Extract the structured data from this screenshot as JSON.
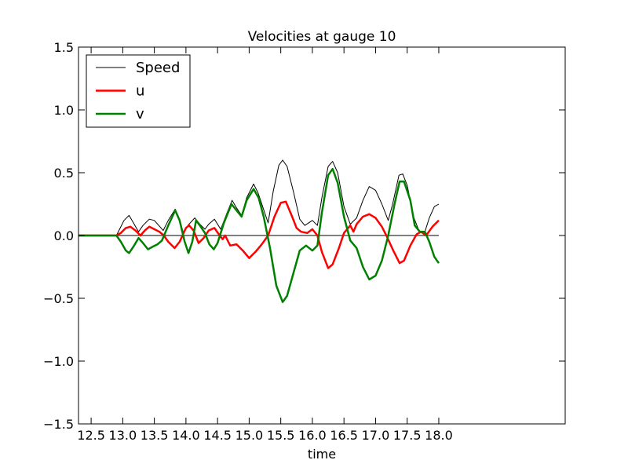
{
  "chart_data": {
    "type": "line",
    "title": "Velocities at gauge 10",
    "xlabel": "time",
    "ylabel": "",
    "xlim": [
      12.3,
      20.0
    ],
    "ylim": [
      -1.5,
      1.5
    ],
    "x_ticks": [
      12.5,
      13.0,
      13.5,
      14.0,
      14.5,
      15.0,
      15.5,
      16.0,
      16.5,
      17.0,
      17.5,
      18.0
    ],
    "x_tick_labels": [
      "12.5",
      "13.0",
      "13.5",
      "14.0",
      "14.5",
      "15.0",
      "15.5",
      "16.0",
      "16.5",
      "17.0",
      "17.5",
      "18.0"
    ],
    "y_ticks": [
      -1.5,
      -1.0,
      -0.5,
      0.0,
      0.5,
      1.0,
      1.5
    ],
    "y_tick_labels": [
      "−1.5",
      "−1.0",
      "−0.5",
      "0.0",
      "0.5",
      "1.0",
      "1.5"
    ],
    "grid": false,
    "legend_position": "top-left",
    "zero_line": {
      "x_start": 12.3,
      "x_end": 18.0,
      "y": 0,
      "color": "#000000"
    },
    "series": [
      {
        "name": "Speed",
        "color": "#000000",
        "width": 1,
        "points": [
          [
            12.3,
            0.0
          ],
          [
            12.9,
            0.0
          ],
          [
            12.95,
            0.05
          ],
          [
            13.02,
            0.12
          ],
          [
            13.1,
            0.16
          ],
          [
            13.17,
            0.1
          ],
          [
            13.25,
            0.03
          ],
          [
            13.32,
            0.08
          ],
          [
            13.42,
            0.13
          ],
          [
            13.5,
            0.12
          ],
          [
            13.57,
            0.08
          ],
          [
            13.64,
            0.04
          ],
          [
            13.72,
            0.12
          ],
          [
            13.83,
            0.21
          ],
          [
            13.9,
            0.12
          ],
          [
            13.96,
            0.02
          ],
          [
            14.03,
            0.08
          ],
          [
            14.14,
            0.14
          ],
          [
            14.22,
            0.09
          ],
          [
            14.3,
            0.05
          ],
          [
            14.36,
            0.09
          ],
          [
            14.45,
            0.13
          ],
          [
            14.55,
            0.05
          ],
          [
            14.65,
            0.18
          ],
          [
            14.73,
            0.28
          ],
          [
            14.8,
            0.22
          ],
          [
            14.88,
            0.16
          ],
          [
            14.96,
            0.3
          ],
          [
            15.07,
            0.41
          ],
          [
            15.14,
            0.34
          ],
          [
            15.22,
            0.22
          ],
          [
            15.3,
            0.1
          ],
          [
            15.38,
            0.35
          ],
          [
            15.47,
            0.56
          ],
          [
            15.53,
            0.6
          ],
          [
            15.6,
            0.55
          ],
          [
            15.7,
            0.35
          ],
          [
            15.8,
            0.13
          ],
          [
            15.88,
            0.08
          ],
          [
            16.0,
            0.12
          ],
          [
            16.08,
            0.08
          ],
          [
            16.15,
            0.3
          ],
          [
            16.25,
            0.55
          ],
          [
            16.32,
            0.59
          ],
          [
            16.4,
            0.5
          ],
          [
            16.5,
            0.23
          ],
          [
            16.6,
            0.09
          ],
          [
            16.7,
            0.14
          ],
          [
            16.8,
            0.28
          ],
          [
            16.9,
            0.39
          ],
          [
            17.0,
            0.36
          ],
          [
            17.1,
            0.25
          ],
          [
            17.2,
            0.12
          ],
          [
            17.27,
            0.25
          ],
          [
            17.37,
            0.48
          ],
          [
            17.43,
            0.49
          ],
          [
            17.5,
            0.4
          ],
          [
            17.6,
            0.15
          ],
          [
            17.7,
            0.02
          ],
          [
            17.78,
            0.03
          ],
          [
            17.85,
            0.14
          ],
          [
            17.93,
            0.23
          ],
          [
            18.0,
            0.25
          ]
        ]
      },
      {
        "name": "u",
        "color": "#ff0000",
        "width": 2.5,
        "points": [
          [
            12.3,
            0.0
          ],
          [
            12.9,
            0.0
          ],
          [
            12.97,
            0.02
          ],
          [
            13.05,
            0.06
          ],
          [
            13.12,
            0.07
          ],
          [
            13.2,
            0.04
          ],
          [
            13.28,
            0.0
          ],
          [
            13.35,
            0.04
          ],
          [
            13.42,
            0.07
          ],
          [
            13.5,
            0.05
          ],
          [
            13.58,
            0.03
          ],
          [
            13.65,
            0.0
          ],
          [
            13.72,
            -0.05
          ],
          [
            13.82,
            -0.1
          ],
          [
            13.9,
            -0.05
          ],
          [
            14.0,
            0.06
          ],
          [
            14.05,
            0.08
          ],
          [
            14.12,
            0.04
          ],
          [
            14.2,
            -0.06
          ],
          [
            14.28,
            -0.02
          ],
          [
            14.36,
            0.04
          ],
          [
            14.45,
            0.06
          ],
          [
            14.52,
            0.01
          ],
          [
            14.58,
            -0.03
          ],
          [
            14.62,
            0.0
          ],
          [
            14.7,
            -0.08
          ],
          [
            14.8,
            -0.07
          ],
          [
            14.9,
            -0.12
          ],
          [
            15.0,
            -0.18
          ],
          [
            15.1,
            -0.13
          ],
          [
            15.2,
            -0.07
          ],
          [
            15.3,
            0.0
          ],
          [
            15.4,
            0.15
          ],
          [
            15.5,
            0.26
          ],
          [
            15.58,
            0.27
          ],
          [
            15.68,
            0.15
          ],
          [
            15.75,
            0.06
          ],
          [
            15.82,
            0.03
          ],
          [
            15.92,
            0.02
          ],
          [
            16.0,
            0.05
          ],
          [
            16.08,
            0.0
          ],
          [
            16.15,
            -0.13
          ],
          [
            16.25,
            -0.26
          ],
          [
            16.32,
            -0.23
          ],
          [
            16.42,
            -0.1
          ],
          [
            16.5,
            0.02
          ],
          [
            16.6,
            0.08
          ],
          [
            16.65,
            0.03
          ],
          [
            16.7,
            0.09
          ],
          [
            16.8,
            0.15
          ],
          [
            16.9,
            0.17
          ],
          [
            17.0,
            0.14
          ],
          [
            17.1,
            0.07
          ],
          [
            17.18,
            -0.01
          ],
          [
            17.28,
            -0.12
          ],
          [
            17.38,
            -0.22
          ],
          [
            17.45,
            -0.2
          ],
          [
            17.55,
            -0.08
          ],
          [
            17.65,
            0.01
          ],
          [
            17.72,
            0.03
          ],
          [
            17.8,
            0.0
          ],
          [
            17.9,
            0.07
          ],
          [
            18.0,
            0.12
          ]
        ]
      },
      {
        "name": "v",
        "color": "#008000",
        "width": 2.5,
        "points": [
          [
            12.3,
            0.0
          ],
          [
            12.9,
            0.0
          ],
          [
            12.97,
            -0.05
          ],
          [
            13.05,
            -0.12
          ],
          [
            13.1,
            -0.14
          ],
          [
            13.18,
            -0.08
          ],
          [
            13.25,
            -0.02
          ],
          [
            13.32,
            -0.06
          ],
          [
            13.4,
            -0.11
          ],
          [
            13.47,
            -0.09
          ],
          [
            13.55,
            -0.07
          ],
          [
            13.62,
            -0.04
          ],
          [
            13.72,
            0.08
          ],
          [
            13.83,
            0.2
          ],
          [
            13.9,
            0.12
          ],
          [
            13.98,
            -0.05
          ],
          [
            14.04,
            -0.14
          ],
          [
            14.1,
            -0.05
          ],
          [
            14.16,
            0.12
          ],
          [
            14.22,
            0.08
          ],
          [
            14.3,
            0.02
          ],
          [
            14.37,
            -0.07
          ],
          [
            14.44,
            -0.11
          ],
          [
            14.5,
            -0.06
          ],
          [
            14.6,
            0.1
          ],
          [
            14.72,
            0.25
          ],
          [
            14.8,
            0.2
          ],
          [
            14.88,
            0.15
          ],
          [
            14.96,
            0.28
          ],
          [
            15.07,
            0.37
          ],
          [
            15.15,
            0.3
          ],
          [
            15.23,
            0.15
          ],
          [
            15.33,
            -0.1
          ],
          [
            15.43,
            -0.4
          ],
          [
            15.53,
            -0.53
          ],
          [
            15.6,
            -0.48
          ],
          [
            15.7,
            -0.3
          ],
          [
            15.8,
            -0.12
          ],
          [
            15.9,
            -0.08
          ],
          [
            16.0,
            -0.12
          ],
          [
            16.08,
            -0.08
          ],
          [
            16.15,
            0.18
          ],
          [
            16.25,
            0.48
          ],
          [
            16.32,
            0.53
          ],
          [
            16.4,
            0.42
          ],
          [
            16.5,
            0.15
          ],
          [
            16.6,
            -0.04
          ],
          [
            16.7,
            -0.1
          ],
          [
            16.8,
            -0.25
          ],
          [
            16.9,
            -0.35
          ],
          [
            17.0,
            -0.32
          ],
          [
            17.1,
            -0.2
          ],
          [
            17.2,
            0.0
          ],
          [
            17.3,
            0.25
          ],
          [
            17.38,
            0.43
          ],
          [
            17.45,
            0.43
          ],
          [
            17.55,
            0.28
          ],
          [
            17.62,
            0.08
          ],
          [
            17.7,
            0.03
          ],
          [
            17.78,
            0.03
          ],
          [
            17.85,
            -0.05
          ],
          [
            17.93,
            -0.17
          ],
          [
            18.0,
            -0.22
          ]
        ]
      }
    ]
  }
}
